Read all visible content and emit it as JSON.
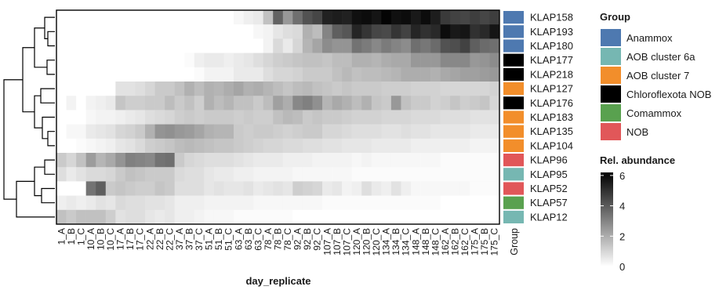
{
  "chart_data": {
    "type": "heatmap",
    "xlabel": "day_replicate",
    "group_column_label": "Group",
    "columns": [
      "1_A",
      "1_B",
      "1_C",
      "10_A",
      "10_B",
      "10_C",
      "17_A",
      "17_B",
      "17_C",
      "22_A",
      "22_B",
      "22_C",
      "37_A",
      "37_B",
      "37_C",
      "51_A",
      "51_B",
      "51_C",
      "63_A",
      "63_B",
      "63_C",
      "78_A",
      "78_B",
      "78_C",
      "92_A",
      "92_B",
      "92_C",
      "107_A",
      "107_B",
      "107_C",
      "120_A",
      "120_B",
      "120_C",
      "134_A",
      "134_B",
      "134_C",
      "148_A",
      "148_B",
      "148_C",
      "162_A",
      "162_B",
      "162_C",
      "175_A",
      "175_B",
      "175_C"
    ],
    "rows": [
      {
        "label": "KLAP158",
        "group": "Anammox",
        "values": [
          0,
          0,
          0,
          0,
          0,
          0,
          0,
          0,
          0,
          0,
          0,
          0,
          0,
          0,
          0,
          0,
          0,
          0,
          0.2,
          0.4,
          0.5,
          1.5,
          3.8,
          2.5,
          3.5,
          4.2,
          4.5,
          5.4,
          5.5,
          5.4,
          5.8,
          5.9,
          5.7,
          6.1,
          5.8,
          5.9,
          5.6,
          5.9,
          5.5,
          4.8,
          4.6,
          4.5,
          4.7,
          4.5,
          4.7
        ]
      },
      {
        "label": "KLAP193",
        "group": "Anammox",
        "values": [
          0,
          0,
          0,
          0,
          0,
          0,
          0,
          0,
          0,
          0,
          0,
          0,
          0,
          0,
          0,
          0,
          0,
          0,
          0,
          0,
          0.2,
          0.3,
          0.6,
          0.8,
          0.9,
          1.9,
          1.6,
          3.0,
          3.9,
          4.1,
          5.3,
          4.9,
          4.5,
          4.4,
          4.9,
          4.6,
          5.3,
          5.0,
          5.2,
          5.9,
          5.6,
          5.7,
          5.0,
          5.2,
          5.7
        ]
      },
      {
        "label": "KLAP180",
        "group": "Anammox",
        "values": [
          0,
          0,
          0,
          0,
          0,
          0,
          0,
          0,
          0,
          0,
          0,
          0,
          0,
          0,
          0,
          0,
          0,
          0,
          0,
          0,
          0,
          0.3,
          0.9,
          0.5,
          1.0,
          1.8,
          2.2,
          2.8,
          2.6,
          2.6,
          3.4,
          3.2,
          2.9,
          3.2,
          3.0,
          2.8,
          3.5,
          3.3,
          3.6,
          4.2,
          4.3,
          4.6,
          3.9,
          3.6,
          3.5
        ]
      },
      {
        "label": "KLAP177",
        "group": "Chloroflexota NOB",
        "values": [
          0,
          0,
          0,
          0,
          0,
          0,
          0,
          0,
          0,
          0,
          0,
          0,
          0,
          0.1,
          0.4,
          0.5,
          0.5,
          0.4,
          0.5,
          0.6,
          0.8,
          1.0,
          1.2,
          1.3,
          1.4,
          1.5,
          1.5,
          1.4,
          1.6,
          1.6,
          1.9,
          1.9,
          1.8,
          2.0,
          2.1,
          2.1,
          2.5,
          2.5,
          2.5,
          2.9,
          2.9,
          2.9,
          2.5,
          2.6,
          2.8
        ]
      },
      {
        "label": "KLAP218",
        "group": "Chloroflexota NOB",
        "values": [
          0,
          0,
          0,
          0,
          0,
          0,
          0,
          0,
          0,
          0,
          0,
          0,
          0,
          0,
          0.1,
          0.3,
          0.3,
          0.3,
          0.5,
          0.5,
          0.5,
          0.8,
          1.0,
          1.0,
          1.1,
          1.3,
          1.3,
          1.3,
          1.5,
          1.7,
          1.5,
          1.6,
          1.6,
          1.7,
          1.8,
          2.0,
          2.0,
          2.0,
          1.9,
          2.1,
          2.2,
          2.3,
          2.3,
          2.4,
          2.5
        ]
      },
      {
        "label": "KLAP127",
        "group": "AOB cluster 7",
        "values": [
          0,
          0,
          0,
          0,
          0,
          0,
          0.7,
          0.7,
          0.8,
          1.0,
          1.3,
          1.3,
          1.5,
          1.9,
          1.6,
          1.9,
          1.8,
          2.0,
          2.2,
          1.9,
          2.0,
          1.8,
          1.6,
          1.4,
          1.6,
          1.7,
          1.5,
          1.4,
          1.3,
          1.4,
          1.3,
          1.3,
          1.3,
          1.2,
          1.2,
          1.2,
          1.1,
          1.1,
          1.1,
          1.0,
          1.0,
          1.0,
          1.0,
          1.0,
          1.1
        ]
      },
      {
        "label": "KLAP176",
        "group": "Chloroflexota NOB",
        "values": [
          0,
          0.3,
          0,
          0.3,
          0.4,
          0.5,
          1.4,
          1.2,
          1.2,
          1.3,
          1.3,
          1.6,
          1.3,
          1.5,
          1.2,
          1.9,
          1.6,
          1.8,
          1.5,
          1.5,
          1.3,
          1.6,
          2.3,
          2.0,
          2.9,
          3.1,
          2.7,
          1.8,
          2.1,
          1.9,
          1.6,
          1.9,
          1.4,
          1.3,
          2.5,
          1.5,
          1.3,
          1.3,
          1.1,
          1.2,
          1.4,
          1.2,
          1.3,
          1.4,
          1.0
        ]
      },
      {
        "label": "KLAP183",
        "group": "AOB cluster 7",
        "values": [
          0,
          0,
          0,
          0.2,
          0.3,
          0.3,
          0.4,
          0.5,
          0.6,
          0.8,
          0.9,
          1.0,
          1.2,
          1.3,
          1.2,
          1.3,
          1.3,
          1.3,
          1.2,
          1.3,
          1.2,
          1.2,
          1.5,
          1.7,
          1.6,
          1.3,
          1.4,
          1.3,
          1.3,
          1.2,
          1.1,
          1.1,
          1.1,
          1.0,
          1.0,
          1.0,
          0.9,
          0.9,
          0.9,
          0.8,
          0.8,
          0.8,
          0.7,
          0.7,
          0.7
        ]
      },
      {
        "label": "KLAP135",
        "group": "AOB cluster 7",
        "values": [
          0,
          0.2,
          0.2,
          0.5,
          0.6,
          0.7,
          1.0,
          1.1,
          1.3,
          1.9,
          2.6,
          2.7,
          2.5,
          2.4,
          2.2,
          1.9,
          1.8,
          1.8,
          1.3,
          1.2,
          1.3,
          1.3,
          1.2,
          1.1,
          1.2,
          1.3,
          1.3,
          1.0,
          1.0,
          0.9,
          0.8,
          0.8,
          0.8,
          0.7,
          0.7,
          0.8,
          0.7,
          0.7,
          0.6,
          0.6,
          0.6,
          0.6,
          0.5,
          0.5,
          0.5
        ]
      },
      {
        "label": "KLAP104",
        "group": "AOB cluster 7",
        "values": [
          0,
          0,
          0.1,
          0.2,
          0.3,
          0.4,
          0.6,
          0.7,
          0.9,
          1.2,
          1.3,
          1.4,
          1.6,
          1.7,
          1.6,
          1.5,
          1.4,
          1.4,
          1.3,
          1.2,
          1.1,
          1.0,
          1.0,
          0.9,
          0.9,
          0.8,
          0.8,
          0.7,
          0.7,
          0.6,
          0.6,
          0.6,
          0.5,
          0.5,
          0.5,
          0.5,
          0.4,
          0.4,
          0.4,
          0.4,
          0.4,
          0.4,
          0.3,
          0.3,
          0.3
        ]
      },
      {
        "label": "KLAP96",
        "group": "NOB",
        "values": [
          1.3,
          1.0,
          1.5,
          2.4,
          1.8,
          2.1,
          2.6,
          3.1,
          3.0,
          2.9,
          3.4,
          3.5,
          1.3,
          1.0,
          0.9,
          0.8,
          0.8,
          0.8,
          0.7,
          0.6,
          0.5,
          0.5,
          0.5,
          0.4,
          0.4,
          0.4,
          0.3,
          0.3,
          0.3,
          0.3,
          0.2,
          0.3,
          0.2,
          0.2,
          0.2,
          0.2,
          0.2,
          0.2,
          0.2,
          0.1,
          0.1,
          0.1,
          0.1,
          0.1,
          0.1
        ]
      },
      {
        "label": "KLAP95",
        "group": "AOB cluster 6a",
        "values": [
          0.8,
          0.5,
          0.7,
          0.9,
          0.9,
          1.0,
          1.3,
          1.5,
          1.4,
          1.3,
          1.3,
          1.3,
          0.9,
          0.8,
          0.8,
          0.6,
          0.5,
          0.5,
          0.4,
          0.4,
          0.3,
          0.3,
          0.3,
          0.3,
          0.2,
          0.2,
          0.2,
          0.2,
          0.2,
          0.2,
          0.1,
          0.1,
          0.1,
          0.1,
          0.1,
          0.1,
          0.1,
          0.1,
          0.1,
          0.1,
          0.1,
          0.1,
          0.1,
          0.1,
          0.1
        ]
      },
      {
        "label": "KLAP52",
        "group": "NOB",
        "values": [
          0,
          0,
          0,
          3.4,
          3.9,
          1.3,
          1.4,
          1.3,
          1.2,
          1.2,
          1.4,
          1.3,
          0.8,
          0.8,
          0.8,
          0.6,
          0.7,
          0.6,
          0.6,
          0.7,
          0.5,
          0.6,
          0.7,
          0.6,
          1.2,
          1.1,
          1.0,
          0.5,
          0.6,
          0.3,
          0.4,
          0.8,
          0.5,
          0.4,
          0.7,
          0.4,
          0.2,
          0.2,
          0.2,
          0.2,
          0.2,
          0.2,
          0.1,
          0.1,
          0.1
        ]
      },
      {
        "label": "KLAP57",
        "group": "Comammox",
        "values": [
          0.4,
          0.5,
          0.4,
          0.5,
          0.7,
          0.6,
          0.9,
          0.8,
          0.8,
          0.7,
          0.7,
          0.6,
          0.4,
          0.4,
          0.4,
          0.3,
          0.3,
          0.3,
          0.3,
          0.3,
          0.2,
          0.2,
          0.2,
          0.2,
          0.2,
          0.2,
          0.2,
          0.1,
          0.1,
          0.1,
          0.1,
          0.1,
          0.1,
          0.1,
          0.1,
          0.1,
          0.1,
          0.1,
          0.1,
          0,
          0,
          0,
          0,
          0,
          0
        ]
      },
      {
        "label": "KLAP12",
        "group": "AOB cluster 6a",
        "values": [
          1.5,
          1.3,
          1.5,
          1.5,
          1.5,
          1.2,
          0.7,
          0.8,
          0.8,
          0.6,
          0.5,
          0.6,
          0.4,
          0.4,
          0.3,
          0.2,
          0.2,
          0.2,
          0.1,
          0.1,
          0.1,
          0.1,
          0.1,
          0.1,
          0,
          0,
          0,
          0,
          0,
          0,
          0,
          0,
          0,
          0,
          0,
          0,
          0,
          0,
          0,
          0,
          0,
          0,
          0,
          0,
          0
        ]
      }
    ],
    "group_legend": {
      "title": "Group",
      "items": [
        {
          "label": "Anammox",
          "color": "#4e79b0"
        },
        {
          "label": "AOB cluster 6a",
          "color": "#76b7b2"
        },
        {
          "label": "AOB cluster 7",
          "color": "#f28e2b"
        },
        {
          "label": "Chloroflexota NOB",
          "color": "#000000"
        },
        {
          "label": "Comammox",
          "color": "#59a14f"
        },
        {
          "label": "NOB",
          "color": "#e15759"
        }
      ]
    },
    "colorbar": {
      "title": "Rel. abundance",
      "min": 0,
      "max": 6.2,
      "ticks": [
        "0",
        "2",
        "4",
        "6"
      ],
      "tick_values": [
        0,
        2,
        4,
        6
      ],
      "low_color": "#ffffff",
      "high_color": "#000000"
    },
    "dendrogram": "row clustering tree (left side)"
  }
}
